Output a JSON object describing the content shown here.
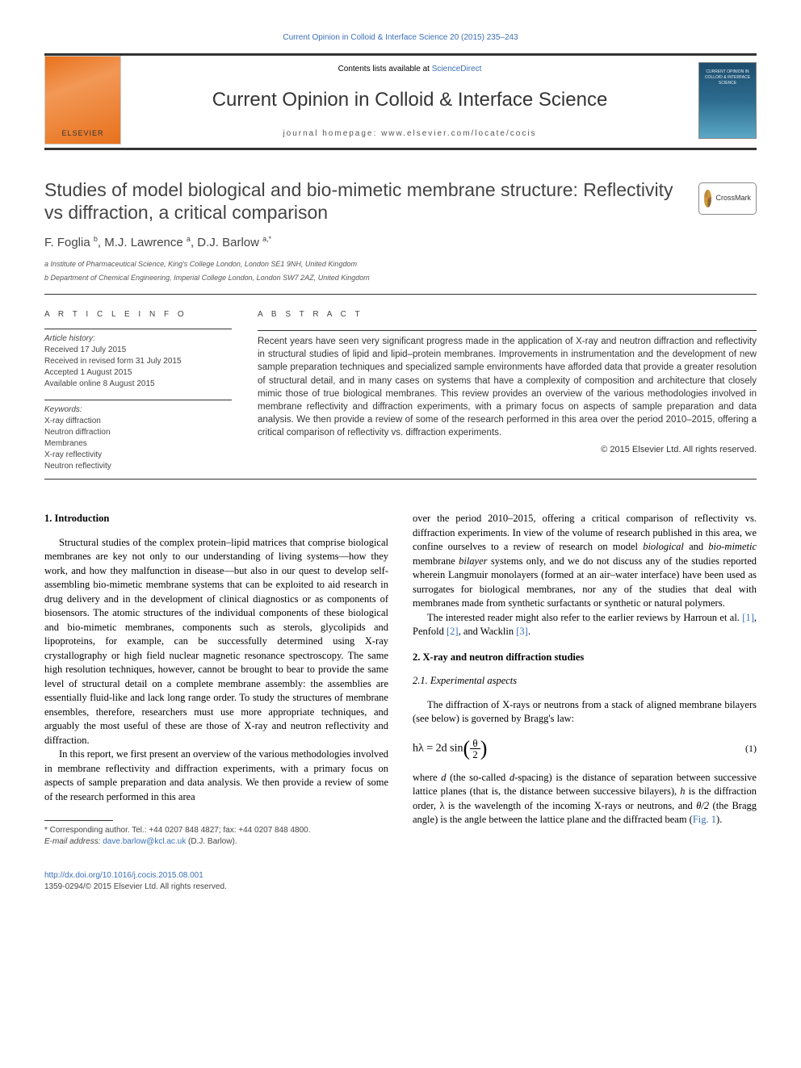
{
  "top_citation": "Current Opinion in Colloid & Interface Science 20 (2015) 235–243",
  "header": {
    "contents_prefix": "Contents lists available at ",
    "contents_link": "ScienceDirect",
    "journal_name": "Current Opinion in Colloid & Interface Science",
    "homepage_label": "journal homepage: ",
    "homepage_url": "www.elsevier.com/locate/cocis",
    "elsevier_label": "ELSEVIER",
    "cover_text": "CURRENT OPINION IN COLLOID & INTERFACE SCIENCE"
  },
  "crossmark": "CrossMark",
  "title": "Studies of model biological and bio-mimetic membrane structure: Reflectivity vs diffraction, a critical comparison",
  "authors": "F. Foglia ",
  "author_sup_b": "b",
  "author_mid": ", M.J. Lawrence ",
  "author_sup_a": "a",
  "author_mid2": ", D.J. Barlow ",
  "author_sup_a2": "a,",
  "author_star": "*",
  "affiliations": {
    "a": "a Institute of Pharmaceutical Science, King's College London, London SE1 9NH, United Kingdom",
    "b": "b Department of Chemical Engineering, Imperial College London, London SW7 2AZ, United Kingdom"
  },
  "article_info": {
    "heading": "A R T I C L E   I N F O",
    "history_label": "Article history:",
    "received": "Received 17 July 2015",
    "revised": "Received in revised form 31 July 2015",
    "accepted": "Accepted 1 August 2015",
    "online": "Available online 8 August 2015",
    "keywords_label": "Keywords:",
    "kw1": "X-ray diffraction",
    "kw2": "Neutron diffraction",
    "kw3": "Membranes",
    "kw4": "X-ray reflectivity",
    "kw5": "Neutron reflectivity"
  },
  "abstract": {
    "heading": "A B S T R A C T",
    "text": "Recent years have seen very significant progress made in the application of X-ray and neutron diffraction and reflectivity in structural studies of lipid and lipid–protein membranes. Improvements in instrumentation and the development of new sample preparation techniques and specialized sample environments have afforded data that provide a greater resolution of structural detail, and in many cases on systems that have a complexity of composition and architecture that closely mimic those of true biological membranes. This review provides an overview of the various methodologies involved in membrane reflectivity and diffraction experiments, with a primary focus on aspects of sample preparation and data analysis. We then provide a review of some of the research performed in this area over the period 2010–2015, offering a critical comparison of reflectivity vs. diffraction experiments.",
    "copyright": "© 2015 Elsevier Ltd. All rights reserved."
  },
  "body": {
    "s1": "1. Introduction",
    "p1": "Structural studies of the complex protein–lipid matrices that comprise biological membranes are key not only to our understanding of living systems—how they work, and how they malfunction in disease—but also in our quest to develop self-assembling bio-mimetic membrane systems that can be exploited to aid research in drug delivery and in the development of clinical diagnostics or as components of biosensors. The atomic structures of the individual components of these biological and bio-mimetic membranes, components such as sterols, glycolipids and lipoproteins, for example, can be successfully determined using X-ray crystallography or high field nuclear magnetic resonance spectroscopy. The same high resolution techniques, however, cannot be brought to bear to provide the same level of structural detail on a complete membrane assembly: the assemblies are essentially fluid-like and lack long range order. To study the structures of membrane ensembles, therefore, researchers must use more appropriate techniques, and arguably the most useful of these are those of X-ray and neutron reflectivity and diffraction.",
    "p2": "In this report, we first present an overview of the various methodologies involved in membrane reflectivity and diffraction experiments, with a primary focus on aspects of sample preparation and data analysis. We then provide a review of some of the research performed in this area",
    "p3_pre": "over the period 2010–2015, offering a critical comparison of reflectivity vs. diffraction experiments. In view of the volume of research published in this area, we confine ourselves to a review of research on model ",
    "p3_it1": "biological",
    "p3_mid1": " and ",
    "p3_it2": "bio-mimetic",
    "p3_mid2": " membrane ",
    "p3_it3": "bilayer",
    "p3_post": " systems only, and we do not discuss any of the studies reported wherein Langmuir monolayers (formed at an air–water interface) have been used as surrogates for biological membranes, nor any of the studies that deal with membranes made from synthetic surfactants or synthetic or natural polymers.",
    "p4_pre": "The interested reader might also refer to the earlier reviews by Harroun et al. ",
    "ref1": "[1]",
    "p4_mid": ", Penfold ",
    "ref2": "[2]",
    "p4_mid2": ", and Wacklin ",
    "ref3": "[3]",
    "p4_post": ".",
    "s2": "2. X-ray and neutron diffraction studies",
    "s21": "2.1. Experimental aspects",
    "p5": "The diffraction of X-rays or neutrons from a stack of aligned membrane bilayers (see below) is governed by Bragg's law:",
    "eq1_lhs": "hλ = 2d  sin",
    "eq1_num": "θ",
    "eq1_den": "2",
    "eq1_label": "(1)",
    "p6_pre": "where ",
    "p6_it1": "d",
    "p6_mid1": " (the so-called ",
    "p6_it2": "d",
    "p6_mid2": "-spacing) is the distance of separation between successive lattice planes (that is, the distance between successive bilayers), ",
    "p6_it3": "h",
    "p6_mid3": " is the diffraction order, λ is the wavelength of the incoming X-rays or neutrons, and ",
    "p6_it4": "θ/2",
    "p6_mid4": " (the Bragg angle) is the angle between the lattice plane and the diffracted beam (",
    "fig1": "Fig. 1",
    "p6_post": ")."
  },
  "footnote": {
    "corr": "* Corresponding author. Tel.: +44 0207 848 4827; fax: +44 0207 848 4800.",
    "email_label": "E-mail address: ",
    "email": "dave.barlow@kcl.ac.uk",
    "email_name": " (D.J. Barlow)."
  },
  "footer": {
    "doi": "http://dx.doi.org/10.1016/j.cocis.2015.08.001",
    "issn": "1359-0294/© 2015 Elsevier Ltd. All rights reserved."
  },
  "colors": {
    "link": "#3b6fb5",
    "text": "#333333",
    "border": "#333333"
  }
}
